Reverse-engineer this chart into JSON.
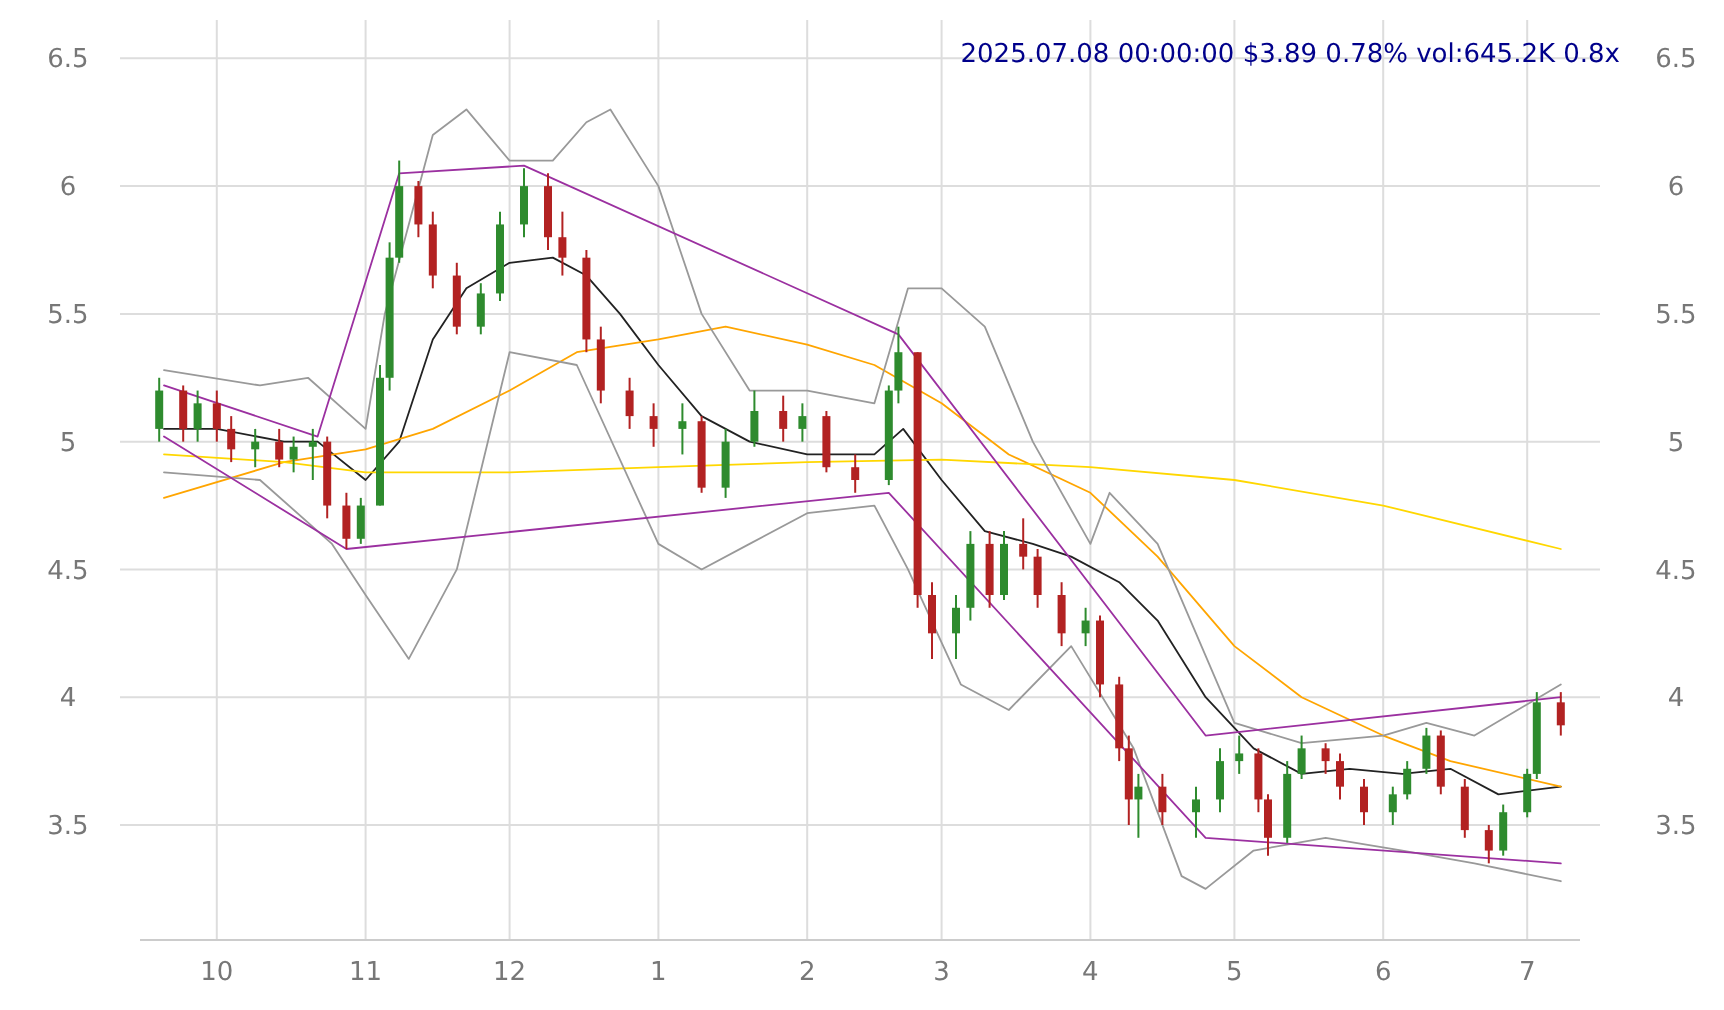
{
  "chart_data": {
    "type": "candlestick",
    "title": "2025.07.08 00:00:00 $3.89 0.78% vol:645.2K 0.8x",
    "xlim": [
      "2024-09-15",
      "2025-07-12"
    ],
    "xticks": [
      {
        "value": "2024-10-01",
        "label": "10"
      },
      {
        "value": "2024-11-01",
        "label": "11"
      },
      {
        "value": "2024-12-01",
        "label": "12"
      },
      {
        "value": "2025-01-01",
        "label": "1"
      },
      {
        "value": "2025-02-01",
        "label": "2"
      },
      {
        "value": "2025-03-01",
        "label": "3"
      },
      {
        "value": "2025-04-01",
        "label": "4"
      },
      {
        "value": "2025-05-01",
        "label": "5"
      },
      {
        "value": "2025-06-01",
        "label": "6"
      },
      {
        "value": "2025-07-01",
        "label": "7"
      }
    ],
    "ylim": [
      3.05,
      6.65
    ],
    "yticks": [
      3.5,
      4.0,
      4.5,
      5.0,
      5.5,
      6.0,
      6.5
    ],
    "y2lim": [
      3.05,
      6.65
    ],
    "y2ticks": [
      3.5,
      4.0,
      4.5,
      5.0,
      5.5,
      6.0,
      6.5
    ],
    "grid": true,
    "x": [
      "2024-09-19",
      "2024-09-24",
      "2024-09-27",
      "2024-10-01",
      "2024-10-04",
      "2024-10-09",
      "2024-10-14",
      "2024-10-17",
      "2024-10-21",
      "2024-10-24",
      "2024-10-28",
      "2024-10-31",
      "2024-11-04",
      "2024-11-06",
      "2024-11-08",
      "2024-11-12",
      "2024-11-15",
      "2024-11-20",
      "2024-11-25",
      "2024-11-29",
      "2024-12-04",
      "2024-12-09",
      "2024-12-12",
      "2024-12-17",
      "2024-12-20",
      "2024-12-26",
      "2024-12-31",
      "2025-01-06",
      "2025-01-10",
      "2025-01-15",
      "2025-01-21",
      "2025-01-27",
      "2025-01-31",
      "2025-02-05",
      "2025-02-11",
      "2025-02-18",
      "2025-02-20",
      "2025-02-24",
      "2025-02-27",
      "2025-03-04",
      "2025-03-07",
      "2025-03-11",
      "2025-03-14",
      "2025-03-18",
      "2025-03-21",
      "2025-03-26",
      "2025-03-31",
      "2025-04-03",
      "2025-04-07",
      "2025-04-09",
      "2025-04-11",
      "2025-04-16",
      "2025-04-23",
      "2025-04-28",
      "2025-05-02",
      "2025-05-06",
      "2025-05-08",
      "2025-05-12",
      "2025-05-15",
      "2025-05-20",
      "2025-05-23",
      "2025-05-28",
      "2025-06-03",
      "2025-06-06",
      "2025-06-10",
      "2025-06-13",
      "2025-06-18",
      "2025-06-23",
      "2025-06-26",
      "2025-07-01",
      "2025-07-03",
      "2025-07-08"
    ],
    "ohlc": [
      [
        5.05,
        5.25,
        5.0,
        5.2
      ],
      [
        5.2,
        5.22,
        5.0,
        5.05
      ],
      [
        5.05,
        5.2,
        5.0,
        5.15
      ],
      [
        5.15,
        5.2,
        5.0,
        5.05
      ],
      [
        5.05,
        5.1,
        4.92,
        4.97
      ],
      [
        4.97,
        5.05,
        4.9,
        5.0
      ],
      [
        5.0,
        5.05,
        4.9,
        4.93
      ],
      [
        4.93,
        5.02,
        4.88,
        4.98
      ],
      [
        4.98,
        5.05,
        4.85,
        5.0
      ],
      [
        5.0,
        5.02,
        4.7,
        4.75
      ],
      [
        4.75,
        4.8,
        4.58,
        4.62
      ],
      [
        4.62,
        4.78,
        4.6,
        4.75
      ],
      [
        4.75,
        5.3,
        4.75,
        5.25
      ],
      [
        5.25,
        5.78,
        5.2,
        5.72
      ],
      [
        5.72,
        6.1,
        5.7,
        6.0
      ],
      [
        6.0,
        6.02,
        5.8,
        5.85
      ],
      [
        5.85,
        5.9,
        5.6,
        5.65
      ],
      [
        5.65,
        5.7,
        5.42,
        5.45
      ],
      [
        5.45,
        5.62,
        5.42,
        5.58
      ],
      [
        5.58,
        5.9,
        5.55,
        5.85
      ],
      [
        5.85,
        6.07,
        5.8,
        6.0
      ],
      [
        6.0,
        6.05,
        5.75,
        5.8
      ],
      [
        5.8,
        5.9,
        5.65,
        5.72
      ],
      [
        5.72,
        5.75,
        5.35,
        5.4
      ],
      [
        5.4,
        5.45,
        5.15,
        5.2
      ],
      [
        5.2,
        5.25,
        5.05,
        5.1
      ],
      [
        5.1,
        5.15,
        4.98,
        5.05
      ],
      [
        5.05,
        5.15,
        4.95,
        5.08
      ],
      [
        5.08,
        5.1,
        4.8,
        4.82
      ],
      [
        4.82,
        5.05,
        4.78,
        5.0
      ],
      [
        5.0,
        5.2,
        4.98,
        5.12
      ],
      [
        5.12,
        5.18,
        5.0,
        5.05
      ],
      [
        5.05,
        5.15,
        5.0,
        5.1
      ],
      [
        5.1,
        5.12,
        4.88,
        4.9
      ],
      [
        4.9,
        4.95,
        4.8,
        4.85
      ],
      [
        4.85,
        5.22,
        4.83,
        5.2
      ],
      [
        5.2,
        5.45,
        5.15,
        5.35
      ],
      [
        5.35,
        5.35,
        4.35,
        4.4
      ],
      [
        4.4,
        4.45,
        4.15,
        4.25
      ],
      [
        4.25,
        4.4,
        4.15,
        4.35
      ],
      [
        4.35,
        4.65,
        4.3,
        4.6
      ],
      [
        4.6,
        4.65,
        4.35,
        4.4
      ],
      [
        4.4,
        4.65,
        4.38,
        4.6
      ],
      [
        4.6,
        4.7,
        4.5,
        4.55
      ],
      [
        4.55,
        4.58,
        4.35,
        4.4
      ],
      [
        4.4,
        4.45,
        4.2,
        4.25
      ],
      [
        4.25,
        4.35,
        4.2,
        4.3
      ],
      [
        4.3,
        4.32,
        4.0,
        4.05
      ],
      [
        4.05,
        4.08,
        3.75,
        3.8
      ],
      [
        3.8,
        3.85,
        3.5,
        3.6
      ],
      [
        3.6,
        3.7,
        3.45,
        3.65
      ],
      [
        3.65,
        3.7,
        3.5,
        3.55
      ],
      [
        3.55,
        3.65,
        3.45,
        3.6
      ],
      [
        3.6,
        3.8,
        3.55,
        3.75
      ],
      [
        3.75,
        3.85,
        3.7,
        3.78
      ],
      [
        3.78,
        3.8,
        3.55,
        3.6
      ],
      [
        3.6,
        3.62,
        3.38,
        3.45
      ],
      [
        3.45,
        3.75,
        3.43,
        3.7
      ],
      [
        3.7,
        3.85,
        3.68,
        3.8
      ],
      [
        3.8,
        3.82,
        3.7,
        3.75
      ],
      [
        3.75,
        3.78,
        3.6,
        3.65
      ],
      [
        3.65,
        3.68,
        3.5,
        3.55
      ],
      [
        3.55,
        3.65,
        3.5,
        3.62
      ],
      [
        3.62,
        3.75,
        3.6,
        3.72
      ],
      [
        3.72,
        3.88,
        3.7,
        3.85
      ],
      [
        3.85,
        3.87,
        3.62,
        3.65
      ],
      [
        3.65,
        3.68,
        3.45,
        3.48
      ],
      [
        3.48,
        3.5,
        3.35,
        3.4
      ],
      [
        3.4,
        3.58,
        3.38,
        3.55
      ],
      [
        3.55,
        3.72,
        3.53,
        3.7
      ],
      [
        3.7,
        4.02,
        3.68,
        3.98
      ],
      [
        3.98,
        4.02,
        3.85,
        3.89
      ]
    ],
    "series": [
      {
        "type": "line",
        "color": "#222222",
        "x": [
          "2024-09-20",
          "2024-10-01",
          "2024-10-15",
          "2024-10-22",
          "2024-11-01",
          "2024-11-08",
          "2024-11-15",
          "2024-11-22",
          "2024-12-01",
          "2024-12-10",
          "2024-12-17",
          "2024-12-24",
          "2025-01-01",
          "2025-01-10",
          "2025-01-20",
          "2025-02-01",
          "2025-02-15",
          "2025-02-21",
          "2025-03-01",
          "2025-03-10",
          "2025-03-20",
          "2025-03-28",
          "2025-04-07",
          "2025-04-15",
          "2025-04-25",
          "2025-05-05",
          "2025-05-15",
          "2025-05-25",
          "2025-06-05",
          "2025-06-15",
          "2025-06-25",
          "2025-07-08"
        ],
        "values": [
          5.05,
          5.05,
          5.0,
          5.0,
          4.85,
          5.0,
          5.4,
          5.6,
          5.7,
          5.72,
          5.65,
          5.5,
          5.3,
          5.1,
          5.0,
          4.95,
          4.95,
          5.05,
          4.85,
          4.65,
          4.6,
          4.55,
          4.45,
          4.3,
          4.0,
          3.8,
          3.7,
          3.72,
          3.7,
          3.72,
          3.62,
          3.65
        ]
      },
      {
        "type": "line",
        "color": "#ffa500",
        "x": [
          "2024-09-20",
          "2024-10-15",
          "2024-11-01",
          "2024-11-15",
          "2024-12-01",
          "2024-12-15",
          "2025-01-01",
          "2025-01-15",
          "2025-02-01",
          "2025-02-15",
          "2025-03-01",
          "2025-03-15",
          "2025-04-01",
          "2025-04-15",
          "2025-05-01",
          "2025-05-15",
          "2025-06-01",
          "2025-06-15",
          "2025-07-08"
        ],
        "values": [
          4.78,
          4.92,
          4.97,
          5.05,
          5.2,
          5.35,
          5.4,
          5.45,
          5.38,
          5.3,
          5.15,
          4.95,
          4.8,
          4.55,
          4.2,
          4.0,
          3.85,
          3.75,
          3.65
        ]
      },
      {
        "type": "line",
        "color": "#ffd700",
        "x": [
          "2024-09-20",
          "2024-10-15",
          "2024-11-01",
          "2024-12-01",
          "2025-01-01",
          "2025-02-01",
          "2025-03-01",
          "2025-04-01",
          "2025-05-01",
          "2025-06-01",
          "2025-07-08"
        ],
        "values": [
          4.95,
          4.92,
          4.88,
          4.88,
          4.9,
          4.92,
          4.93,
          4.9,
          4.85,
          4.75,
          4.58
        ]
      },
      {
        "type": "line",
        "color": "#999999",
        "x": [
          "2024-09-20",
          "2024-10-10",
          "2024-10-20",
          "2024-11-01",
          "2024-11-05",
          "2024-11-15",
          "2024-11-22",
          "2024-12-01",
          "2024-12-10",
          "2024-12-17",
          "2024-12-22",
          "2025-01-01",
          "2025-01-10",
          "2025-01-20",
          "2025-02-01",
          "2025-02-15",
          "2025-02-22",
          "2025-03-01",
          "2025-03-10",
          "2025-03-20",
          "2025-04-01",
          "2025-04-05",
          "2025-04-15",
          "2025-05-01",
          "2025-05-15",
          "2025-06-01",
          "2025-06-10",
          "2025-06-20",
          "2025-07-08"
        ],
        "values": [
          5.28,
          5.22,
          5.25,
          5.05,
          5.5,
          6.2,
          6.3,
          6.1,
          6.1,
          6.25,
          6.3,
          6.0,
          5.5,
          5.2,
          5.2,
          5.15,
          5.6,
          5.6,
          5.45,
          5.0,
          4.6,
          4.8,
          4.6,
          3.9,
          3.82,
          3.85,
          3.9,
          3.85,
          4.05
        ]
      },
      {
        "type": "line",
        "color": "#999999",
        "x": [
          "2024-09-20",
          "2024-10-10",
          "2024-10-25",
          "2024-11-01",
          "2024-11-10",
          "2024-11-20",
          "2024-12-01",
          "2024-12-15",
          "2025-01-01",
          "2025-01-10",
          "2025-01-20",
          "2025-02-01",
          "2025-02-15",
          "2025-02-22",
          "2025-03-05",
          "2025-03-15",
          "2025-03-28",
          "2025-04-10",
          "2025-04-20",
          "2025-04-25",
          "2025-05-05",
          "2025-05-20",
          "2025-06-05",
          "2025-06-20",
          "2025-07-08"
        ],
        "values": [
          4.88,
          4.85,
          4.6,
          4.4,
          4.15,
          4.5,
          5.35,
          5.3,
          4.6,
          4.5,
          4.6,
          4.72,
          4.75,
          4.5,
          4.05,
          3.95,
          4.2,
          3.8,
          3.3,
          3.25,
          3.4,
          3.45,
          3.4,
          3.35,
          3.28
        ]
      },
      {
        "type": "line",
        "color": "#9b30a0",
        "x": [
          "2024-09-20",
          "2024-10-22",
          "2024-11-08",
          "2024-12-04",
          "2025-02-20",
          "2025-04-25",
          "2025-07-08"
        ],
        "values": [
          5.22,
          5.02,
          6.05,
          6.08,
          5.42,
          3.85,
          4.0
        ]
      },
      {
        "type": "line",
        "color": "#9b30a0",
        "x": [
          "2024-09-20",
          "2024-10-28",
          "2025-02-18",
          "2025-04-25",
          "2025-07-08"
        ],
        "values": [
          5.02,
          4.58,
          4.8,
          3.45,
          3.35
        ]
      }
    ]
  }
}
